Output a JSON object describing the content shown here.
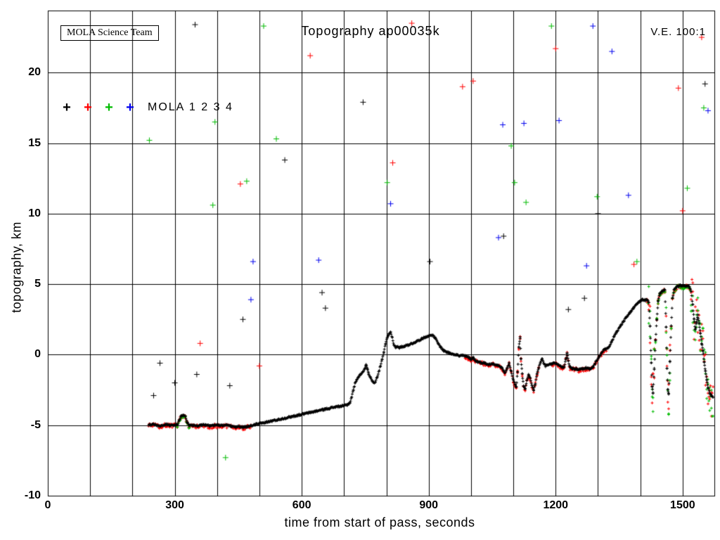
{
  "chart_data": {
    "type": "scatter",
    "title": "Topography ap00035k",
    "annotations": {
      "team": "MOLA Science Team",
      "ve": "V.E. 100:1"
    },
    "legend": {
      "label": "MOLA 1 2 3 4",
      "entries": [
        {
          "name": "MOLA 1",
          "color": "#000000"
        },
        {
          "name": "MOLA 2",
          "color": "#ff0000"
        },
        {
          "name": "MOLA 3",
          "color": "#00bb00"
        },
        {
          "name": "MOLA 4",
          "color": "#0000ee"
        }
      ]
    },
    "xlabel": "time from start of pass, seconds",
    "ylabel": "topography, km",
    "xlim": [
      0,
      1575
    ],
    "ylim": [
      -10,
      24.4
    ],
    "x_ticks": [
      0,
      300,
      600,
      900,
      1200,
      1500
    ],
    "y_ticks": [
      -10,
      -5,
      0,
      5,
      10,
      15,
      20
    ],
    "x_grid_step": 100,
    "y_grid_step": 5,
    "grid": true,
    "profile_series": "MOLA 1",
    "profile": [
      [
        238,
        -5.0
      ],
      [
        248,
        -4.95
      ],
      [
        258,
        -5.0
      ],
      [
        268,
        -5.05
      ],
      [
        278,
        -4.95
      ],
      [
        288,
        -5.0
      ],
      [
        298,
        -5.0
      ],
      [
        306,
        -4.95
      ],
      [
        311,
        -4.6
      ],
      [
        315,
        -4.35
      ],
      [
        320,
        -4.3
      ],
      [
        325,
        -4.4
      ],
      [
        329,
        -4.75
      ],
      [
        333,
        -5.0
      ],
      [
        343,
        -5.0
      ],
      [
        353,
        -5.05
      ],
      [
        363,
        -5.0
      ],
      [
        373,
        -5.0
      ],
      [
        383,
        -5.05
      ],
      [
        393,
        -5.0
      ],
      [
        403,
        -5.0
      ],
      [
        413,
        -5.05
      ],
      [
        423,
        -5.0
      ],
      [
        433,
        -5.05
      ],
      [
        443,
        -5.1
      ],
      [
        453,
        -5.1
      ],
      [
        463,
        -5.15
      ],
      [
        472,
        -5.1
      ],
      [
        480,
        -5.05
      ],
      [
        490,
        -4.95
      ],
      [
        500,
        -4.9
      ],
      [
        515,
        -4.8
      ],
      [
        530,
        -4.7
      ],
      [
        545,
        -4.6
      ],
      [
        560,
        -4.5
      ],
      [
        575,
        -4.4
      ],
      [
        590,
        -4.3
      ],
      [
        605,
        -4.2
      ],
      [
        620,
        -4.1
      ],
      [
        635,
        -4.0
      ],
      [
        650,
        -3.9
      ],
      [
        665,
        -3.8
      ],
      [
        680,
        -3.7
      ],
      [
        695,
        -3.65
      ],
      [
        708,
        -3.55
      ],
      [
        714,
        -3.4
      ],
      [
        718,
        -3.0
      ],
      [
        722,
        -2.5
      ],
      [
        726,
        -2.05
      ],
      [
        730,
        -1.75
      ],
      [
        735,
        -1.55
      ],
      [
        740,
        -1.35
      ],
      [
        745,
        -1.2
      ],
      [
        749,
        -0.95
      ],
      [
        752,
        -0.75
      ],
      [
        755,
        -1.0
      ],
      [
        758,
        -1.35
      ],
      [
        762,
        -1.6
      ],
      [
        766,
        -1.8
      ],
      [
        770,
        -2.0
      ],
      [
        774,
        -1.9
      ],
      [
        778,
        -1.6
      ],
      [
        782,
        -1.2
      ],
      [
        786,
        -0.8
      ],
      [
        790,
        -0.35
      ],
      [
        794,
        0.15
      ],
      [
        798,
        0.75
      ],
      [
        802,
        1.2
      ],
      [
        806,
        1.45
      ],
      [
        810,
        1.6
      ],
      [
        814,
        1.2
      ],
      [
        818,
        0.7
      ],
      [
        822,
        0.5
      ],
      [
        826,
        0.6
      ],
      [
        831,
        0.5
      ],
      [
        836,
        0.55
      ],
      [
        842,
        0.6
      ],
      [
        852,
        0.7
      ],
      [
        862,
        0.8
      ],
      [
        872,
        0.95
      ],
      [
        882,
        1.1
      ],
      [
        892,
        1.25
      ],
      [
        901,
        1.35
      ],
      [
        908,
        1.4
      ],
      [
        915,
        1.2
      ],
      [
        922,
        0.8
      ],
      [
        928,
        0.55
      ],
      [
        935,
        0.3
      ],
      [
        942,
        0.2
      ],
      [
        950,
        0.1
      ],
      [
        958,
        0.05
      ],
      [
        966,
        0.0
      ],
      [
        973,
        -0.1
      ],
      [
        980,
        -0.05
      ],
      [
        988,
        -0.12
      ],
      [
        995,
        -0.2
      ],
      [
        1000,
        -0.32
      ],
      [
        1005,
        -0.2
      ],
      [
        1010,
        -0.42
      ],
      [
        1016,
        -0.5
      ],
      [
        1022,
        -0.55
      ],
      [
        1032,
        -0.6
      ],
      [
        1042,
        -0.7
      ],
      [
        1052,
        -0.65
      ],
      [
        1062,
        -0.72
      ],
      [
        1072,
        -0.9
      ],
      [
        1080,
        -1.3
      ],
      [
        1085,
        -1.0
      ],
      [
        1090,
        -0.62
      ],
      [
        1095,
        -1.2
      ],
      [
        1100,
        -1.8
      ],
      [
        1104,
        -2.1
      ],
      [
        1107,
        -2.3
      ],
      [
        1110,
        -1.2
      ],
      [
        1113,
        0.5
      ],
      [
        1116,
        1.2
      ],
      [
        1118,
        -0.3
      ],
      [
        1121,
        -1.4
      ],
      [
        1124,
        -2.2
      ],
      [
        1128,
        -2.4
      ],
      [
        1132,
        -1.85
      ],
      [
        1136,
        -1.45
      ],
      [
        1140,
        -1.7
      ],
      [
        1144,
        -2.2
      ],
      [
        1148,
        -2.5
      ],
      [
        1152,
        -2.05
      ],
      [
        1156,
        -1.35
      ],
      [
        1160,
        -0.95
      ],
      [
        1164,
        -0.55
      ],
      [
        1168,
        -0.3
      ],
      [
        1172,
        -0.6
      ],
      [
        1176,
        -0.8
      ],
      [
        1181,
        -0.75
      ],
      [
        1186,
        -0.7
      ],
      [
        1191,
        -0.65
      ],
      [
        1196,
        -0.6
      ],
      [
        1201,
        -0.62
      ],
      [
        1206,
        -0.7
      ],
      [
        1211,
        -0.8
      ],
      [
        1216,
        -0.9
      ],
      [
        1220,
        -0.85
      ],
      [
        1224,
        -0.3
      ],
      [
        1227,
        0.1
      ],
      [
        1230,
        -0.45
      ],
      [
        1234,
        -0.9
      ],
      [
        1240,
        -1.0
      ],
      [
        1248,
        -1.0
      ],
      [
        1256,
        -1.05
      ],
      [
        1264,
        -1.0
      ],
      [
        1272,
        -0.95
      ],
      [
        1280,
        -1.0
      ],
      [
        1288,
        -0.9
      ],
      [
        1295,
        -0.5
      ],
      [
        1302,
        -0.2
      ],
      [
        1308,
        0.1
      ],
      [
        1314,
        0.35
      ],
      [
        1320,
        0.42
      ],
      [
        1326,
        0.52
      ],
      [
        1332,
        0.9
      ],
      [
        1338,
        1.3
      ],
      [
        1344,
        1.6
      ],
      [
        1352,
        2.0
      ],
      [
        1360,
        2.35
      ],
      [
        1368,
        2.7
      ],
      [
        1376,
        3.0
      ],
      [
        1384,
        3.3
      ],
      [
        1392,
        3.6
      ],
      [
        1400,
        3.8
      ],
      [
        1406,
        3.92
      ],
      [
        1412,
        3.85
      ],
      [
        1416,
        3.9
      ],
      [
        1420,
        3.7
      ],
      [
        1423,
        2.0
      ],
      [
        1426,
        -0.6
      ],
      [
        1428,
        -2.3
      ],
      [
        1430,
        -2.7
      ],
      [
        1433,
        -1.0
      ],
      [
        1436,
        1.0
      ],
      [
        1439,
        2.5
      ],
      [
        1442,
        3.8
      ],
      [
        1446,
        4.3
      ],
      [
        1452,
        4.5
      ],
      [
        1458,
        4.6
      ],
      [
        1461,
        2.0
      ],
      [
        1463,
        -1.0
      ],
      [
        1465,
        -2.5
      ],
      [
        1467,
        -2.8
      ],
      [
        1470,
        -0.5
      ],
      [
        1473,
        2.0
      ],
      [
        1476,
        4.0
      ],
      [
        1480,
        4.6
      ],
      [
        1486,
        4.8
      ],
      [
        1494,
        4.9
      ],
      [
        1502,
        4.85
      ],
      [
        1510,
        4.9
      ],
      [
        1516,
        4.8
      ],
      [
        1520,
        4.5
      ],
      [
        1524,
        3.5
      ],
      [
        1527,
        2.5
      ],
      [
        1530,
        1.8
      ],
      [
        1533,
        2.3
      ],
      [
        1536,
        2.8
      ],
      [
        1539,
        2.2
      ],
      [
        1542,
        1.5
      ],
      [
        1545,
        0.8
      ],
      [
        1548,
        0.3
      ],
      [
        1551,
        -0.5
      ],
      [
        1554,
        -1.2
      ],
      [
        1557,
        -1.8
      ],
      [
        1560,
        -2.3
      ],
      [
        1564,
        -2.7
      ],
      [
        1568,
        -2.9
      ],
      [
        1572,
        -3.0
      ]
    ],
    "overlays": [
      {
        "color": "#ff0000",
        "regions": [
          [
            238,
            480
          ],
          [
            985,
            1160
          ],
          [
            1190,
            1320
          ],
          [
            1415,
            1575
          ]
        ]
      },
      {
        "color": "#00bb00",
        "regions": [
          [
            306,
            335
          ],
          [
            1418,
            1575
          ]
        ]
      }
    ],
    "noisy_regions": [
      [
        1419,
        1433
      ],
      [
        1459,
        1470
      ],
      [
        1520,
        1575
      ]
    ],
    "outliers": [
      {
        "color": "#000000",
        "points": [
          [
            250,
            -2.9
          ],
          [
            265,
            -0.6
          ],
          [
            300,
            -2.0
          ],
          [
            348,
            23.4
          ],
          [
            352,
            -1.4
          ],
          [
            430,
            -2.2
          ],
          [
            461,
            2.5
          ],
          [
            560,
            13.8
          ],
          [
            648,
            4.4
          ],
          [
            656,
            3.3
          ],
          [
            745,
            17.9
          ],
          [
            903,
            6.6
          ],
          [
            1077,
            8.4
          ],
          [
            1230,
            3.2
          ],
          [
            1268,
            4.0
          ],
          [
            1300,
            10.0
          ],
          [
            1553,
            19.2
          ]
        ]
      },
      {
        "color": "#ff0000",
        "points": [
          [
            360,
            0.8
          ],
          [
            455,
            12.1
          ],
          [
            500,
            -0.8
          ],
          [
            620,
            21.2
          ],
          [
            815,
            13.6
          ],
          [
            860,
            23.5
          ],
          [
            980,
            19.0
          ],
          [
            1005,
            19.4
          ],
          [
            1200,
            21.7
          ],
          [
            1385,
            6.4
          ],
          [
            1490,
            18.9
          ],
          [
            1500,
            10.2
          ],
          [
            1545,
            22.5
          ]
        ]
      },
      {
        "color": "#00bb00",
        "points": [
          [
            240,
            15.2
          ],
          [
            390,
            10.6
          ],
          [
            395,
            16.5
          ],
          [
            420,
            -7.3
          ],
          [
            470,
            12.3
          ],
          [
            510,
            23.3
          ],
          [
            540,
            15.3
          ],
          [
            802,
            12.2
          ],
          [
            1095,
            14.8
          ],
          [
            1103,
            12.2
          ],
          [
            1130,
            10.8
          ],
          [
            1190,
            23.3
          ],
          [
            1298,
            11.2
          ],
          [
            1392,
            6.6
          ],
          [
            1511,
            11.8
          ],
          [
            1550,
            17.5
          ]
        ]
      },
      {
        "color": "#0000ee",
        "points": [
          [
            480,
            3.9
          ],
          [
            485,
            6.6
          ],
          [
            640,
            6.7
          ],
          [
            810,
            10.7
          ],
          [
            1065,
            8.3
          ],
          [
            1075,
            16.3
          ],
          [
            1125,
            16.4
          ],
          [
            1208,
            16.6
          ],
          [
            1273,
            6.3
          ],
          [
            1288,
            23.3
          ],
          [
            1333,
            21.5
          ],
          [
            1372,
            11.3
          ],
          [
            1560,
            17.3
          ]
        ]
      }
    ]
  }
}
